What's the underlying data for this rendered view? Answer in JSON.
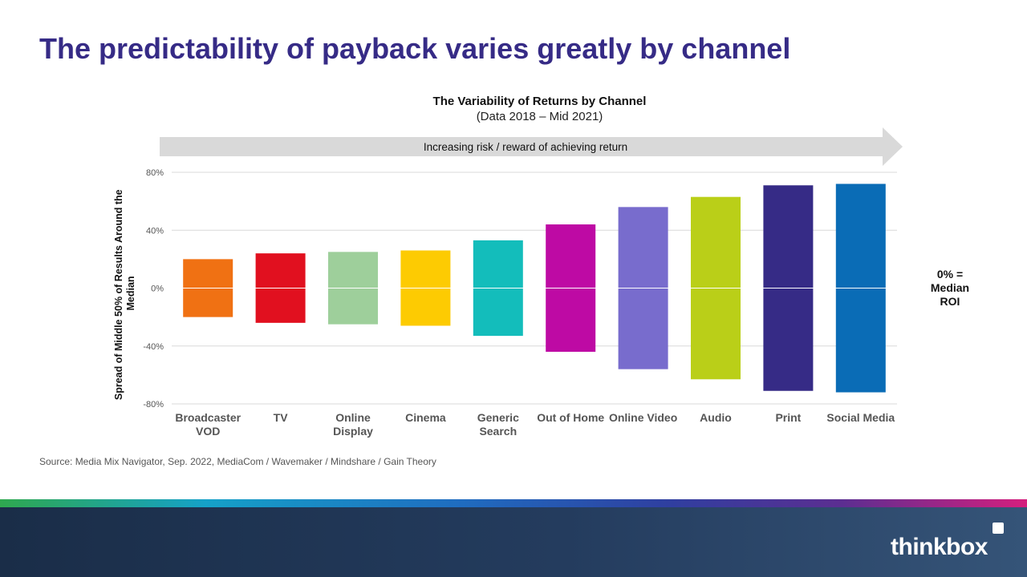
{
  "slide_title": "The predictability of payback varies greatly by channel",
  "source": "Source: Media Mix Navigator,  Sep. 2022, MediaCom / Wavemaker / Mindshare / Gain Theory",
  "logo_text": "thinkbox",
  "chart_data": {
    "type": "bar",
    "title": "The Variability of Returns by Channel",
    "subtitle": "(Data 2018 – Mid 2021)",
    "arrow_label": "Increasing risk / reward of achieving return",
    "ylabel": "Spread of Middle 50% of Results Around the Median",
    "ylim": [
      -80,
      80
    ],
    "yticks": [
      {
        "value": 80,
        "label": "80%"
      },
      {
        "value": 40,
        "label": "40%"
      },
      {
        "value": 0,
        "label": "0%"
      },
      {
        "value": -40,
        "label": "-40%"
      },
      {
        "value": -80,
        "label": "-80%"
      }
    ],
    "grid": true,
    "annotation": [
      "0% =",
      "Median",
      "ROI"
    ],
    "categories": [
      [
        "Broadcaster",
        "VOD"
      ],
      [
        "TV"
      ],
      [
        "Online",
        "Display"
      ],
      [
        "Cinema"
      ],
      [
        "Generic",
        "Search"
      ],
      [
        "Out of Home"
      ],
      [
        "Online Video"
      ],
      [
        "Audio"
      ],
      [
        "Print"
      ],
      [
        "Social Media"
      ]
    ],
    "ranges": [
      {
        "low": -20,
        "high": 20
      },
      {
        "low": -24,
        "high": 24
      },
      {
        "low": -25,
        "high": 25
      },
      {
        "low": -26,
        "high": 26
      },
      {
        "low": -33,
        "high": 33
      },
      {
        "low": -44,
        "high": 44
      },
      {
        "low": -56,
        "high": 56
      },
      {
        "low": -63,
        "high": 63
      },
      {
        "low": -71,
        "high": 71
      },
      {
        "low": -72,
        "high": 72
      }
    ],
    "colors": [
      "#f07113",
      "#e1101f",
      "#9ecf9b",
      "#fdcb02",
      "#13bdbb",
      "#be0aa4",
      "#786ccd",
      "#bacf18",
      "#362b86",
      "#0a6cb6"
    ]
  }
}
